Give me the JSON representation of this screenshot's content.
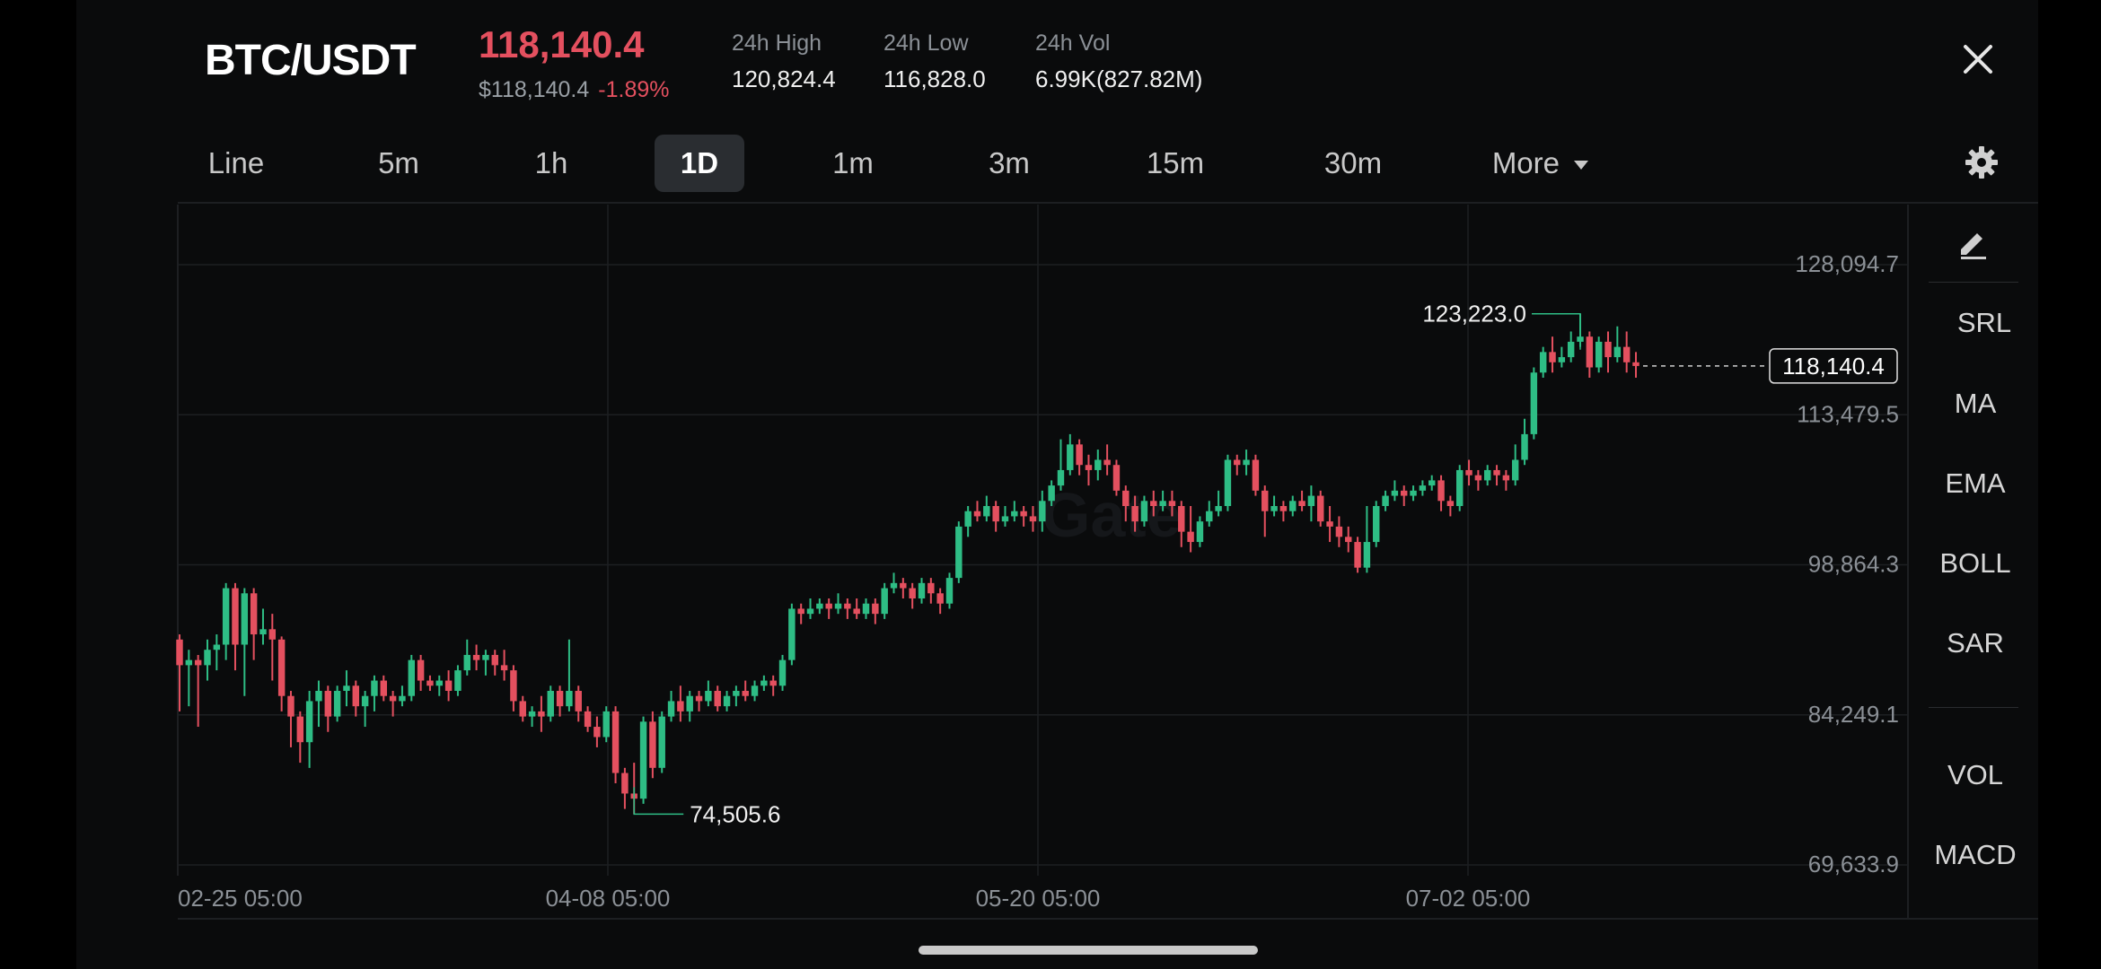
{
  "header": {
    "pair": "BTC/USDT",
    "last_price": "118,140.4",
    "usd_price": "$118,140.4",
    "change": "-1.89%",
    "stats": [
      {
        "label": "24h High",
        "value": "120,824.4"
      },
      {
        "label": "24h Low",
        "value": "116,828.0"
      },
      {
        "label": "24h Vol",
        "value": "6.99K(827.82M)"
      }
    ],
    "close_icon": "close-icon"
  },
  "timeframes": [
    {
      "label": "Line"
    },
    {
      "label": "5m"
    },
    {
      "label": "1h"
    },
    {
      "label": "1D",
      "active": true
    },
    {
      "label": "1m"
    },
    {
      "label": "3m"
    },
    {
      "label": "15m"
    },
    {
      "label": "30m"
    },
    {
      "label": "More"
    }
  ],
  "settings_icon": "gear-icon",
  "sidebar": {
    "draw_icon": "pencil-icon",
    "indicators": [
      "SRL",
      "MA",
      "EMA",
      "BOLL",
      "SAR"
    ],
    "sub_indicators": [
      "VOL",
      "MACD"
    ]
  },
  "colors": {
    "up": "#2ebd85",
    "down": "#e4505f",
    "background": "#0a0b0c",
    "grid": "#1d1f22"
  },
  "chart_data": {
    "type": "candlestick",
    "y_ticks": [
      "128,094.7",
      "113,479.5",
      "98,864.3",
      "84,249.1",
      "69,633.9"
    ],
    "y_tick_values": [
      128094.7,
      113479.5,
      98864.3,
      84249.1,
      69633.9
    ],
    "ylim": [
      69633.9,
      128094.7
    ],
    "x_ticks": [
      "02-25 05:00",
      "04-08 05:00",
      "05-20 05:00",
      "07-02 05:00"
    ],
    "max_label": "123,223.0",
    "min_label": "74,505.6",
    "current_price_label": "118,140.4",
    "current_price": 118140.4,
    "watermark": "Gate",
    "candles": [
      [
        91500,
        89000,
        92000,
        84500
      ],
      [
        89000,
        89500,
        90500,
        85000
      ],
      [
        89500,
        89000,
        90000,
        83000
      ],
      [
        89000,
        90500,
        91500,
        87500
      ],
      [
        90500,
        91000,
        92000,
        88500
      ],
      [
        91000,
        96500,
        97000,
        89500
      ],
      [
        96500,
        91000,
        97000,
        88500
      ],
      [
        91000,
        96000,
        96500,
        86000
      ],
      [
        96000,
        92000,
        96500,
        89500
      ],
      [
        92000,
        92500,
        94500,
        91000
      ],
      [
        92500,
        91500,
        94000,
        87500
      ],
      [
        91500,
        86000,
        91800,
        84500
      ],
      [
        86000,
        84000,
        86500,
        81000
      ],
      [
        84000,
        81500,
        84500,
        79500
      ],
      [
        81500,
        85500,
        86500,
        79000
      ],
      [
        85500,
        86500,
        87500,
        83000
      ],
      [
        86500,
        84000,
        87000,
        82500
      ],
      [
        84000,
        86500,
        87000,
        83500
      ],
      [
        86500,
        87000,
        88500,
        85000
      ],
      [
        87000,
        85000,
        87500,
        84000
      ],
      [
        85000,
        86000,
        86500,
        83000
      ],
      [
        86000,
        87500,
        88000,
        84500
      ],
      [
        87500,
        86000,
        88000,
        85500
      ],
      [
        86000,
        85500,
        86500,
        84000
      ],
      [
        85500,
        86000,
        87000,
        85000
      ],
      [
        86000,
        89500,
        90000,
        85500
      ],
      [
        89500,
        87500,
        90000,
        86500
      ],
      [
        87500,
        87000,
        88000,
        86500
      ],
      [
        87000,
        87500,
        88000,
        86000
      ],
      [
        87500,
        86500,
        88500,
        85500
      ],
      [
        86500,
        88500,
        89000,
        86000
      ],
      [
        88500,
        90000,
        91500,
        88000
      ],
      [
        90000,
        89500,
        91000,
        88500
      ],
      [
        89500,
        90000,
        90500,
        88000
      ],
      [
        90000,
        89000,
        90500,
        88000
      ],
      [
        89000,
        88500,
        90500,
        87500
      ],
      [
        88500,
        85500,
        89000,
        84500
      ],
      [
        85500,
        84000,
        86000,
        83500
      ],
      [
        84000,
        84500,
        85000,
        83000
      ],
      [
        84500,
        84000,
        86000,
        82500
      ],
      [
        84000,
        86500,
        87000,
        83500
      ],
      [
        86500,
        85000,
        87000,
        84000
      ],
      [
        85000,
        86500,
        91500,
        84500
      ],
      [
        86500,
        84500,
        87000,
        83500
      ],
      [
        84500,
        83000,
        85000,
        82500
      ],
      [
        83000,
        82000,
        84000,
        81000
      ],
      [
        82000,
        84500,
        85000,
        81500
      ],
      [
        84500,
        78500,
        85000,
        77500
      ],
      [
        78500,
        76500,
        79000,
        75000
      ],
      [
        76500,
        76000,
        79500,
        74500
      ],
      [
        76000,
        83500,
        84000,
        75500
      ],
      [
        83500,
        79000,
        84500,
        78000
      ],
      [
        79000,
        84000,
        84500,
        78500
      ],
      [
        84000,
        85500,
        86500,
        83500
      ],
      [
        85500,
        84500,
        87000,
        83500
      ],
      [
        84500,
        86000,
        86500,
        83500
      ],
      [
        86000,
        85500,
        86500,
        84500
      ],
      [
        85500,
        86500,
        87500,
        85000
      ],
      [
        86500,
        85000,
        87000,
        84500
      ],
      [
        85000,
        86000,
        86500,
        84500
      ],
      [
        86000,
        86500,
        87000,
        85000
      ],
      [
        86500,
        86000,
        87500,
        85500
      ],
      [
        86000,
        87000,
        87500,
        85500
      ],
      [
        87000,
        87500,
        88000,
        86500
      ],
      [
        87500,
        87000,
        88000,
        86000
      ],
      [
        87000,
        89500,
        90000,
        86500
      ],
      [
        89500,
        94500,
        95000,
        89000
      ],
      [
        94500,
        94000,
        95000,
        93000
      ],
      [
        94000,
        94500,
        95500,
        93500
      ],
      [
        94500,
        95000,
        95500,
        94000
      ],
      [
        95000,
        94500,
        95500,
        93500
      ],
      [
        94500,
        95000,
        96000,
        94000
      ],
      [
        95000,
        94500,
        95500,
        93500
      ],
      [
        94500,
        94000,
        95500,
        93500
      ],
      [
        94000,
        95000,
        95500,
        93500
      ],
      [
        95000,
        94000,
        95500,
        93000
      ],
      [
        94000,
        96500,
        97000,
        93500
      ],
      [
        96500,
        97000,
        98000,
        96000
      ],
      [
        97000,
        96500,
        97500,
        95500
      ],
      [
        96500,
        95500,
        97000,
        94500
      ],
      [
        95500,
        97000,
        97500,
        95000
      ],
      [
        97000,
        96000,
        97500,
        95000
      ],
      [
        96000,
        95000,
        96500,
        94000
      ],
      [
        95000,
        97500,
        98000,
        94500
      ],
      [
        97500,
        102500,
        103000,
        97000
      ],
      [
        102500,
        104000,
        104500,
        101500
      ],
      [
        104000,
        103500,
        105000,
        103000
      ],
      [
        103500,
        104500,
        105500,
        103000
      ],
      [
        104500,
        103000,
        105000,
        102000
      ],
      [
        103000,
        103500,
        104500,
        102500
      ],
      [
        103500,
        104000,
        105000,
        103000
      ],
      [
        104000,
        103500,
        104500,
        102500
      ],
      [
        103500,
        103000,
        104500,
        102000
      ],
      [
        103000,
        105000,
        106000,
        102000
      ],
      [
        105000,
        106500,
        107000,
        104500
      ],
      [
        106500,
        108000,
        111000,
        106000
      ],
      [
        108000,
        110500,
        111500,
        107500
      ],
      [
        110500,
        108500,
        111000,
        107500
      ],
      [
        108500,
        108000,
        109500,
        106500
      ],
      [
        108000,
        109000,
        110000,
        107000
      ],
      [
        109000,
        108500,
        110500,
        107500
      ],
      [
        108500,
        106000,
        109000,
        105500
      ],
      [
        106000,
        104500,
        106500,
        103000
      ],
      [
        104500,
        103000,
        105500,
        102000
      ],
      [
        103000,
        105000,
        105500,
        102500
      ],
      [
        105000,
        104500,
        106000,
        103500
      ],
      [
        104500,
        105000,
        106000,
        104000
      ],
      [
        105000,
        104500,
        106000,
        103500
      ],
      [
        104500,
        102000,
        105000,
        100500
      ],
      [
        102000,
        101000,
        104500,
        100000
      ],
      [
        101000,
        103000,
        103500,
        100500
      ],
      [
        103000,
        104000,
        105000,
        102500
      ],
      [
        104000,
        104500,
        106000,
        103500
      ],
      [
        104500,
        109000,
        109500,
        104000
      ],
      [
        109000,
        108500,
        109500,
        107500
      ],
      [
        108500,
        109000,
        110000,
        107500
      ],
      [
        109000,
        106000,
        109500,
        105500
      ],
      [
        106000,
        104000,
        106500,
        101500
      ],
      [
        104000,
        104500,
        105500,
        103500
      ],
      [
        104500,
        104000,
        105000,
        103000
      ],
      [
        104000,
        105000,
        105500,
        103500
      ],
      [
        105000,
        104500,
        106000,
        104000
      ],
      [
        104500,
        105500,
        106500,
        103000
      ],
      [
        105500,
        103000,
        106000,
        102500
      ],
      [
        103000,
        102500,
        104500,
        101000
      ],
      [
        102500,
        101500,
        103500,
        100500
      ],
      [
        101500,
        101000,
        102500,
        100000
      ],
      [
        101000,
        98500,
        101500,
        98000
      ],
      [
        98500,
        101000,
        104500,
        98000
      ],
      [
        101000,
        104500,
        105000,
        100500
      ],
      [
        104500,
        105500,
        106000,
        104000
      ],
      [
        105500,
        106000,
        107000,
        105000
      ],
      [
        106000,
        105500,
        106500,
        104500
      ],
      [
        105500,
        106000,
        106500,
        105000
      ],
      [
        106000,
        106500,
        107000,
        105500
      ],
      [
        106500,
        107000,
        107500,
        106000
      ],
      [
        107000,
        105000,
        107500,
        104000
      ],
      [
        105000,
        104500,
        105500,
        103500
      ],
      [
        104500,
        108000,
        108500,
        104000
      ],
      [
        108000,
        107500,
        109000,
        106500
      ],
      [
        107500,
        107000,
        108000,
        106000
      ],
      [
        107000,
        108000,
        108500,
        106500
      ],
      [
        108000,
        107500,
        108500,
        106500
      ],
      [
        107500,
        107000,
        108000,
        106000
      ],
      [
        107000,
        109000,
        110500,
        106500
      ],
      [
        109000,
        111500,
        113000,
        108500
      ],
      [
        111500,
        117500,
        118000,
        111000
      ],
      [
        117500,
        119500,
        120000,
        117000
      ],
      [
        119500,
        118500,
        121000,
        117500
      ],
      [
        118500,
        119000,
        120000,
        118000
      ],
      [
        119000,
        120500,
        121500,
        118500
      ],
      [
        120500,
        121000,
        123223,
        120000
      ],
      [
        121000,
        118000,
        121500,
        117000
      ],
      [
        118000,
        120500,
        121000,
        117500
      ],
      [
        120500,
        119000,
        121500,
        117500
      ],
      [
        119000,
        120000,
        122000,
        118500
      ],
      [
        120000,
        118500,
        121500,
        117500
      ],
      [
        118500,
        118140.4,
        119500,
        117000
      ]
    ]
  }
}
